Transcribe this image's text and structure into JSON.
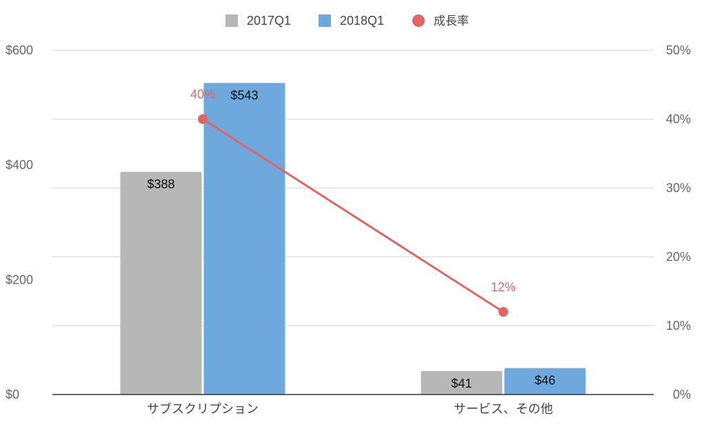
{
  "chart_data": {
    "type": "bar",
    "title": "",
    "categories": [
      "サブスクリプション",
      "サービス、その他"
    ],
    "series": [
      {
        "name": "2017Q1",
        "type": "bar",
        "axis": "left",
        "values": [
          388,
          41
        ],
        "labels": [
          "$388",
          "$41"
        ]
      },
      {
        "name": "2018Q1",
        "type": "bar",
        "axis": "left",
        "values": [
          543,
          46
        ],
        "labels": [
          "$543",
          "$46"
        ]
      },
      {
        "name": "成長率",
        "type": "line",
        "axis": "right",
        "values": [
          40,
          12
        ],
        "labels": [
          "40%",
          "12%"
        ]
      }
    ],
    "left_axis": {
      "min": 0,
      "max": 600,
      "ticks": [
        0,
        200,
        400,
        600
      ],
      "tick_labels": [
        "$0",
        "$200",
        "$400",
        "$600"
      ]
    },
    "right_axis": {
      "min": 0,
      "max": 50,
      "ticks": [
        0,
        10,
        20,
        30,
        40,
        50
      ],
      "tick_labels": [
        "0%",
        "10%",
        "20%",
        "30%",
        "40%",
        "50%"
      ]
    },
    "grid": true,
    "legend_position": "top-center",
    "colors": {
      "2017Q1": "#b7b7b7",
      "2018Q1": "#6fa8dc",
      "成長率": "#e06666",
      "grid": "#d0d0d0",
      "baseline": "#333333"
    }
  }
}
